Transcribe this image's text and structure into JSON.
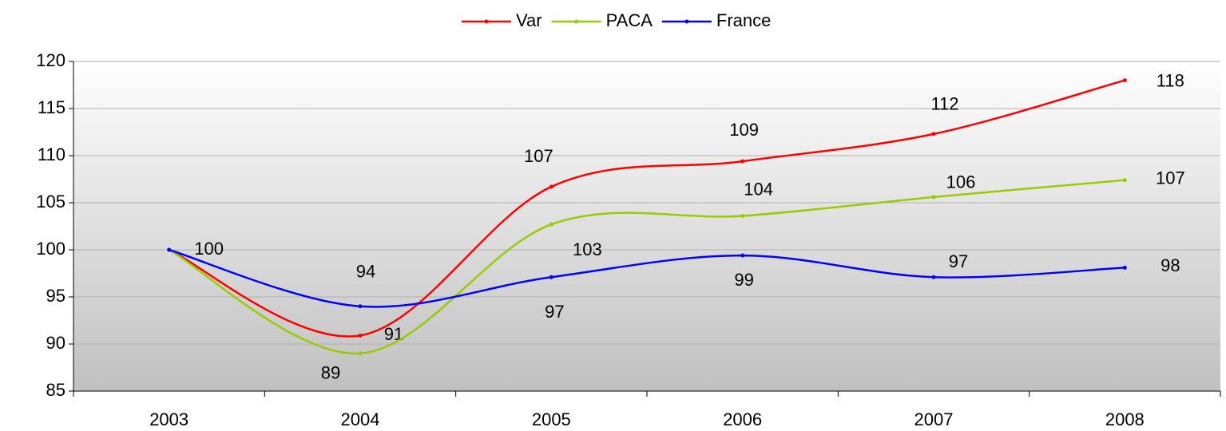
{
  "chart_data": {
    "type": "line",
    "categories": [
      "2003",
      "2004",
      "2005",
      "2006",
      "2007",
      "2008"
    ],
    "series": [
      {
        "name": "Var",
        "color": "#ff0000",
        "values": [
          100,
          90.9,
          106.7,
          109.4,
          112.3,
          118
        ],
        "value_labels": [
          "100",
          "91",
          "107",
          "109",
          "112",
          "118"
        ]
      },
      {
        "name": "PACA",
        "color": "#99cc00",
        "values": [
          100,
          89,
          102.7,
          103.6,
          105.6,
          107.4
        ],
        "value_labels": [
          null,
          "89",
          "103",
          "104",
          "106",
          "107"
        ]
      },
      {
        "name": "France",
        "color": "#0000ff",
        "values": [
          100,
          94,
          97.1,
          99.4,
          97.1,
          98.1
        ],
        "value_labels": [
          null,
          "94",
          "97",
          "99",
          "97",
          "98"
        ]
      }
    ],
    "ylim": [
      85,
      120
    ],
    "yticks": [
      85,
      90,
      95,
      100,
      105,
      110,
      115,
      120
    ],
    "grid": true,
    "legend": "top"
  }
}
